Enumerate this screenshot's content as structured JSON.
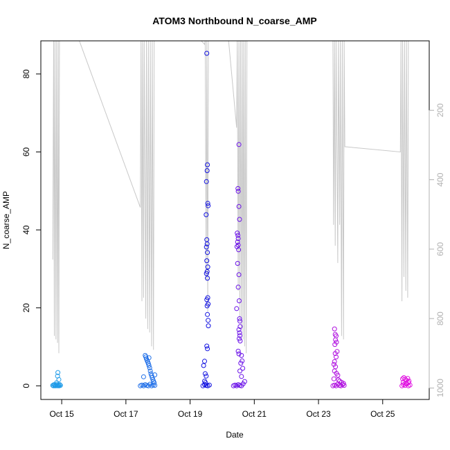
{
  "chart_data": {
    "type": "scatter",
    "title": "ATOM3 Northbound N_coarse_AMP",
    "xlabel": "Date",
    "ylabel": "N_coarse_AMP",
    "x_axis": {
      "unit": "date (October)",
      "range": [
        14.35,
        26.45
      ],
      "ticks": [
        15,
        17,
        19,
        21,
        23,
        25
      ],
      "tick_labels": [
        "Oct 15",
        "Oct 17",
        "Oct 19",
        "Oct 21",
        "Oct 23",
        "Oct 25"
      ]
    },
    "y_axis": {
      "range": [
        -3.5,
        88.5
      ],
      "ticks": [
        0,
        20,
        40,
        60,
        80
      ],
      "tick_labels": [
        "0",
        "20",
        "40",
        "60",
        "80"
      ]
    },
    "y2_axis": {
      "label": "",
      "inverted": true,
      "range": [
        1033,
        0
      ],
      "ticks": [
        200,
        400,
        600,
        800,
        1000
      ],
      "tick_labels": [
        "200",
        "400",
        "600",
        "800",
        "1000"
      ],
      "color": "#b0b0b0"
    },
    "grid": false,
    "legend": "none",
    "series": [
      {
        "color": "#1e9be8",
        "points": [
          [
            14.72,
            0.1
          ],
          [
            14.74,
            0.0
          ],
          [
            14.76,
            0.3
          ],
          [
            14.78,
            0.0
          ],
          [
            14.8,
            0.2
          ],
          [
            14.82,
            0.0
          ],
          [
            14.84,
            0.4
          ],
          [
            14.86,
            0.1
          ],
          [
            14.88,
            0.0
          ],
          [
            14.9,
            0.2
          ],
          [
            14.92,
            0.0
          ],
          [
            14.94,
            0.3
          ],
          [
            14.96,
            0.1
          ],
          [
            14.87,
            2.5
          ],
          [
            14.88,
            3.4
          ],
          [
            14.91,
            1.6
          ],
          [
            14.84,
            0.8
          ]
        ]
      },
      {
        "color": "#1e6ee8",
        "points": [
          [
            17.45,
            0.0
          ],
          [
            17.5,
            0.2
          ],
          [
            17.55,
            0.0
          ],
          [
            17.6,
            0.3
          ],
          [
            17.65,
            0.1
          ],
          [
            17.7,
            0.0
          ],
          [
            17.75,
            0.4
          ],
          [
            17.8,
            0.0
          ],
          [
            17.85,
            0.2
          ],
          [
            17.9,
            0.1
          ],
          [
            17.6,
            7.8
          ],
          [
            17.62,
            7.4
          ],
          [
            17.64,
            6.9
          ],
          [
            17.66,
            6.5
          ],
          [
            17.68,
            6.1
          ],
          [
            17.7,
            5.7
          ],
          [
            17.72,
            5.2
          ],
          [
            17.74,
            4.6
          ],
          [
            17.76,
            3.8
          ],
          [
            17.78,
            3.1
          ],
          [
            17.8,
            2.6
          ],
          [
            17.82,
            2.1
          ],
          [
            17.84,
            1.6
          ],
          [
            17.86,
            1.2
          ],
          [
            17.88,
            0.8
          ],
          [
            17.55,
            2.3
          ],
          [
            17.72,
            7.2
          ],
          [
            17.9,
            2.8
          ]
        ]
      },
      {
        "color": "#1010e0",
        "points": [
          [
            19.4,
            0.0
          ],
          [
            19.45,
            0.3
          ],
          [
            19.5,
            0.1
          ],
          [
            19.55,
            0.0
          ],
          [
            19.6,
            0.2
          ],
          [
            19.42,
            5.2
          ],
          [
            19.45,
            6.3
          ],
          [
            19.47,
            3.1
          ],
          [
            19.5,
            2.5
          ],
          [
            19.52,
            85.3
          ],
          [
            19.54,
            56.7
          ],
          [
            19.53,
            55.2
          ],
          [
            19.51,
            52.4
          ],
          [
            19.55,
            46.8
          ],
          [
            19.56,
            46.2
          ],
          [
            19.5,
            43.9
          ],
          [
            19.52,
            37.5
          ],
          [
            19.53,
            36.4
          ],
          [
            19.51,
            35.6
          ],
          [
            19.54,
            34.2
          ],
          [
            19.52,
            32.1
          ],
          [
            19.55,
            30.5
          ],
          [
            19.53,
            29.3
          ],
          [
            19.51,
            28.8
          ],
          [
            19.54,
            27.6
          ],
          [
            19.55,
            22.6
          ],
          [
            19.52,
            22.1
          ],
          [
            19.56,
            21.0
          ],
          [
            19.53,
            20.5
          ],
          [
            19.54,
            18.3
          ],
          [
            19.56,
            16.8
          ],
          [
            19.57,
            15.4
          ],
          [
            19.52,
            10.2
          ],
          [
            19.54,
            9.5
          ],
          [
            19.45,
            1.2
          ],
          [
            19.48,
            0.8
          ]
        ]
      },
      {
        "color": "#6a10e8",
        "points": [
          [
            20.35,
            0.0
          ],
          [
            20.4,
            0.2
          ],
          [
            20.45,
            0.0
          ],
          [
            20.5,
            0.3
          ],
          [
            20.55,
            0.1
          ],
          [
            20.6,
            0.0
          ],
          [
            20.65,
            0.5
          ],
          [
            20.7,
            1.1
          ],
          [
            20.52,
            61.9
          ],
          [
            20.49,
            50.6
          ],
          [
            20.5,
            49.9
          ],
          [
            20.52,
            46.0
          ],
          [
            20.54,
            42.7
          ],
          [
            20.47,
            39.2
          ],
          [
            20.49,
            38.6
          ],
          [
            20.5,
            37.8
          ],
          [
            20.48,
            36.9
          ],
          [
            20.5,
            36.1
          ],
          [
            20.46,
            35.7
          ],
          [
            20.51,
            34.9
          ],
          [
            20.48,
            31.4
          ],
          [
            20.52,
            28.5
          ],
          [
            20.5,
            25.3
          ],
          [
            20.53,
            21.8
          ],
          [
            20.45,
            19.8
          ],
          [
            20.54,
            17.2
          ],
          [
            20.55,
            16.6
          ],
          [
            20.56,
            15.2
          ],
          [
            20.52,
            14.4
          ],
          [
            20.54,
            13.6
          ],
          [
            20.55,
            12.9
          ],
          [
            20.53,
            12.1
          ],
          [
            20.56,
            11.5
          ],
          [
            20.5,
            8.9
          ],
          [
            20.52,
            8.2
          ],
          [
            20.6,
            7.8
          ],
          [
            20.62,
            6.4
          ],
          [
            20.58,
            5.8
          ],
          [
            20.64,
            4.5
          ],
          [
            20.55,
            3.8
          ],
          [
            20.6,
            2.4
          ]
        ]
      },
      {
        "color": "#b010e0",
        "points": [
          [
            23.45,
            0.0
          ],
          [
            23.5,
            0.2
          ],
          [
            23.55,
            0.0
          ],
          [
            23.6,
            0.4
          ],
          [
            23.65,
            0.1
          ],
          [
            23.7,
            0.0
          ],
          [
            23.75,
            0.3
          ],
          [
            23.8,
            0.1
          ],
          [
            23.5,
            14.6
          ],
          [
            23.52,
            13.2
          ],
          [
            23.55,
            12.8
          ],
          [
            23.53,
            11.8
          ],
          [
            23.56,
            11.2
          ],
          [
            23.51,
            10.6
          ],
          [
            23.58,
            8.8
          ],
          [
            23.52,
            8.3
          ],
          [
            23.55,
            7.4
          ],
          [
            23.5,
            6.2
          ],
          [
            23.48,
            5.5
          ],
          [
            23.53,
            4.9
          ],
          [
            23.5,
            3.8
          ],
          [
            23.56,
            3.2
          ],
          [
            23.6,
            2.7
          ],
          [
            23.48,
            1.8
          ],
          [
            23.62,
            1.5
          ],
          [
            23.66,
            1.2
          ],
          [
            23.72,
            0.9
          ],
          [
            23.78,
            0.6
          ]
        ]
      },
      {
        "color": "#e010e0",
        "points": [
          [
            25.6,
            0.0
          ],
          [
            25.65,
            0.3
          ],
          [
            25.7,
            0.1
          ],
          [
            25.75,
            0.5
          ],
          [
            25.8,
            0.0
          ],
          [
            25.85,
            0.2
          ],
          [
            25.62,
            1.8
          ],
          [
            25.66,
            2.1
          ],
          [
            25.7,
            1.7
          ],
          [
            25.74,
            1.4
          ],
          [
            25.78,
            1.9
          ],
          [
            25.82,
            1.2
          ],
          [
            25.64,
            0.9
          ],
          [
            25.72,
            0.7
          ],
          [
            25.8,
            0.8
          ]
        ]
      }
    ],
    "altitude_trace": {
      "color": "#c8c8c8",
      "points": [
        [
          14.72,
          630
        ],
        [
          14.75,
          0
        ],
        [
          14.77,
          850
        ],
        [
          14.79,
          0
        ],
        [
          14.82,
          860
        ],
        [
          14.84,
          0
        ],
        [
          14.87,
          870
        ],
        [
          14.89,
          0
        ],
        [
          14.91,
          900
        ],
        [
          14.93,
          0
        ],
        [
          15.55,
          0
        ],
        [
          17.45,
          480
        ],
        [
          17.47,
          0
        ],
        [
          17.5,
          750
        ],
        [
          17.52,
          0
        ],
        [
          17.55,
          740
        ],
        [
          17.57,
          0
        ],
        [
          17.62,
          800
        ],
        [
          17.64,
          0
        ],
        [
          17.68,
          830
        ],
        [
          17.7,
          0
        ],
        [
          17.74,
          840
        ],
        [
          17.76,
          0
        ],
        [
          17.8,
          880
        ],
        [
          17.82,
          0
        ],
        [
          17.86,
          890
        ],
        [
          17.88,
          0
        ],
        [
          19.35,
          0
        ],
        [
          19.45,
          10
        ],
        [
          19.47,
          0
        ],
        [
          19.5,
          690
        ],
        [
          19.52,
          0
        ],
        [
          19.55,
          780
        ],
        [
          19.57,
          0
        ],
        [
          20.2,
          0
        ],
        [
          20.45,
          250
        ],
        [
          20.47,
          0
        ],
        [
          20.5,
          720
        ],
        [
          20.52,
          0
        ],
        [
          20.55,
          800
        ],
        [
          20.57,
          0
        ],
        [
          20.6,
          830
        ],
        [
          20.62,
          0
        ],
        [
          20.65,
          860
        ],
        [
          20.67,
          0
        ],
        [
          20.7,
          880
        ],
        [
          20.72,
          0
        ],
        [
          20.75,
          900
        ],
        [
          20.77,
          0
        ],
        [
          23.45,
          0
        ],
        [
          23.47,
          530
        ],
        [
          23.5,
          0
        ],
        [
          23.52,
          590
        ],
        [
          23.55,
          0
        ],
        [
          23.6,
          640
        ],
        [
          23.62,
          0
        ],
        [
          23.66,
          530
        ],
        [
          23.68,
          0
        ],
        [
          23.72,
          850
        ],
        [
          23.74,
          0
        ],
        [
          23.78,
          860
        ],
        [
          23.8,
          0
        ],
        [
          23.82,
          305
        ],
        [
          25.55,
          320
        ],
        [
          25.57,
          0
        ],
        [
          25.6,
          750
        ],
        [
          25.62,
          0
        ],
        [
          25.66,
          680
        ],
        [
          25.68,
          0
        ],
        [
          25.72,
          720
        ],
        [
          25.74,
          0
        ],
        [
          25.78,
          740
        ],
        [
          25.8,
          0
        ]
      ]
    }
  }
}
